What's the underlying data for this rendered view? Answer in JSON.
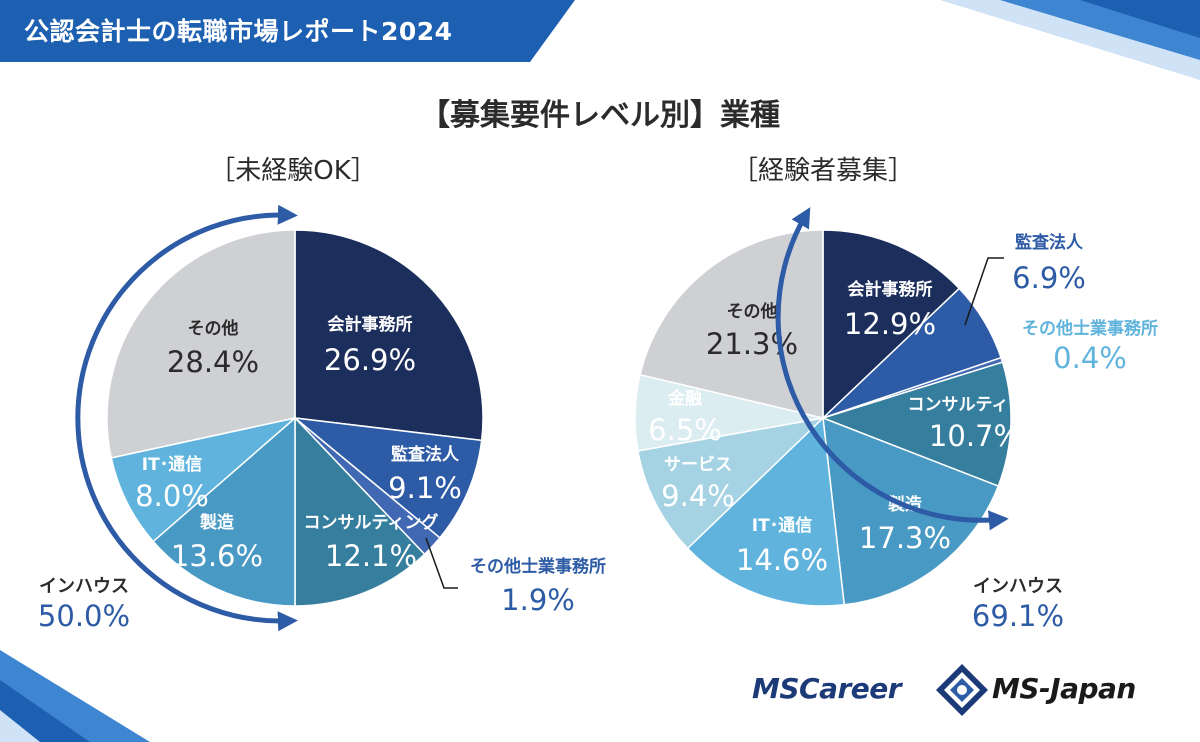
{
  "header": {
    "title": "公認会計士の転職市場レポート2024"
  },
  "main_title": "【募集要件レベル別】業種",
  "logos": {
    "mscareer": "MSCareer",
    "msjapan": "MS-Japan"
  },
  "colors": {
    "header_blue": "#1d5fb0",
    "accent_blue": "#2d5ba6",
    "label_white": "#ffffff",
    "label_dark": "#2b2b2b",
    "label_blue": "#2d5ba6"
  },
  "chart_data": [
    {
      "type": "pie",
      "title": "［未経験OK］",
      "slices": [
        {
          "name": "会計事務所",
          "value": 26.9,
          "label": "26.9%",
          "color": "#1c2e5c"
        },
        {
          "name": "監査法人",
          "value": 9.1,
          "label": "9.1%",
          "color": "#2d5ba6"
        },
        {
          "name": "その他士業事務所",
          "value": 1.9,
          "label": "1.9%",
          "color": "#4169b3"
        },
        {
          "name": "コンサルティング",
          "value": 12.1,
          "label": "12.1%",
          "color": "#367e9e"
        },
        {
          "name": "製造",
          "value": 13.6,
          "label": "13.6%",
          "color": "#4899c4"
        },
        {
          "name": "IT･通信",
          "value": 8.0,
          "label": "8.0%",
          "color": "#5fb3dc"
        },
        {
          "name": "その他",
          "value": 28.4,
          "label": "28.4%",
          "color": "#cfd0d4"
        }
      ],
      "inhouse": {
        "name": "インハウス",
        "label": "50.0%"
      }
    },
    {
      "type": "pie",
      "title": "［経験者募集］",
      "slices": [
        {
          "name": "会計事務所",
          "value": 12.9,
          "label": "12.9%",
          "color": "#1c2e5c"
        },
        {
          "name": "監査法人",
          "value": 6.9,
          "label": "6.9%",
          "color": "#2d5ba6"
        },
        {
          "name": "その他士業事務所",
          "value": 0.4,
          "label": "0.4%",
          "color": "#4169b3"
        },
        {
          "name": "コンサルティング",
          "value": 10.7,
          "label": "10.7%",
          "color": "#367e9e"
        },
        {
          "name": "製造",
          "value": 17.3,
          "label": "17.3%",
          "color": "#4899c4"
        },
        {
          "name": "IT･通信",
          "value": 14.6,
          "label": "14.6%",
          "color": "#5fb3dc"
        },
        {
          "name": "サービス",
          "value": 9.4,
          "label": "9.4%",
          "color": "#a6d3e3"
        },
        {
          "name": "金融",
          "value": 6.5,
          "label": "6.5%",
          "color": "#dcedf2"
        },
        {
          "name": "その他",
          "value": 21.3,
          "label": "21.3%",
          "color": "#cfd0d4"
        }
      ],
      "inhouse": {
        "name": "インハウス",
        "label": "69.1%"
      }
    }
  ]
}
